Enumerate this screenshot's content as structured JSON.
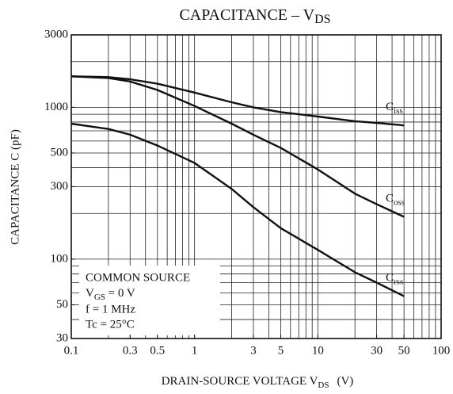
{
  "chart_data": {
    "type": "line",
    "title": "CAPACITANCE – V",
    "title_sub": "DS",
    "x_label": "DRAIN-SOURCE VOLTAGE  V",
    "x_label_sub": "DS",
    "x_label_unit": "(V)",
    "y_label": "CAPACITANCE   C   (pF)",
    "annotation": [
      "COMMON SOURCE",
      "V",
      "GS",
      " = 0 V",
      "f = 1 MHz",
      "Tc = 25°C"
    ],
    "log_x": true,
    "log_y": true,
    "grid": true,
    "color": "#111111",
    "xlim": [
      0.1,
      100
    ],
    "ylim": [
      30,
      3000
    ],
    "xticks": [
      0.1,
      0.3,
      0.5,
      1,
      3,
      5,
      10,
      30,
      50,
      100
    ],
    "yticks": [
      30,
      50,
      100,
      300,
      500,
      1000,
      3000
    ],
    "x_grid": [
      0.2,
      0.3,
      0.4,
      0.5,
      0.6,
      0.7,
      0.8,
      0.9,
      1,
      2,
      3,
      4,
      5,
      6,
      7,
      8,
      9,
      10,
      20,
      30,
      40,
      50,
      60,
      70,
      80,
      90
    ],
    "y_grid": [
      40,
      50,
      60,
      70,
      80,
      90,
      100,
      200,
      300,
      400,
      500,
      600,
      700,
      800,
      900,
      1000,
      2000
    ],
    "x": [
      0.1,
      0.2,
      0.3,
      0.5,
      1,
      2,
      3,
      5,
      10,
      20,
      30,
      50
    ],
    "series": [
      {
        "name": "C",
        "name_sub": "iss",
        "values": [
          1600,
          1580,
          1530,
          1430,
          1250,
          1080,
          1000,
          930,
          870,
          810,
          790,
          760
        ]
      },
      {
        "name": "C",
        "name_sub": "oss",
        "values": [
          1600,
          1560,
          1480,
          1300,
          1020,
          780,
          660,
          540,
          390,
          270,
          230,
          190
        ]
      },
      {
        "name": "C",
        "name_sub": "rss",
        "values": [
          780,
          720,
          660,
          560,
          430,
          290,
          220,
          160,
          115,
          82,
          70,
          57
        ]
      }
    ]
  }
}
